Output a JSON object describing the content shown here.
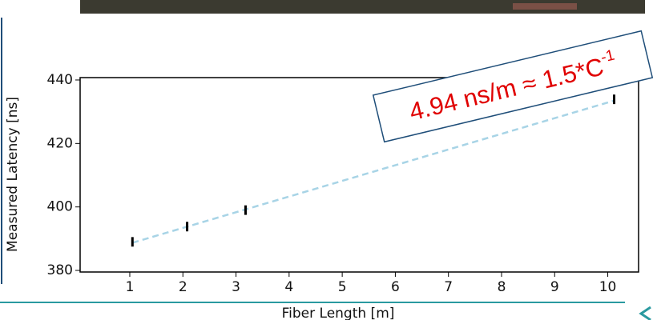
{
  "chart_data": {
    "type": "errorbar",
    "x_label": "Fiber Length [m]",
    "y_label": "Measured Latency [ns]",
    "x": [
      1.05,
      2.08,
      3.18,
      10.12
    ],
    "values": [
      389.0,
      393.8,
      399.0,
      433.9
    ],
    "errors": [
      1.5,
      1.5,
      1.5,
      1.5
    ],
    "color": "#000000",
    "fit": {
      "x": [
        1.05,
        10.12
      ],
      "values": [
        388.7,
        433.5
      ],
      "color": "#a8d4e6"
    },
    "xlim": [
      0.065,
      10.58
    ],
    "ylim": [
      379.5,
      440.75
    ],
    "xticks": [
      1,
      2,
      3,
      4,
      5,
      6,
      7,
      8,
      9,
      10
    ],
    "yticks": [
      380,
      400,
      420,
      440
    ],
    "annotation": {
      "text": "4.94 ns/m ≈ 1.5*C",
      "superscript": "-1"
    }
  }
}
